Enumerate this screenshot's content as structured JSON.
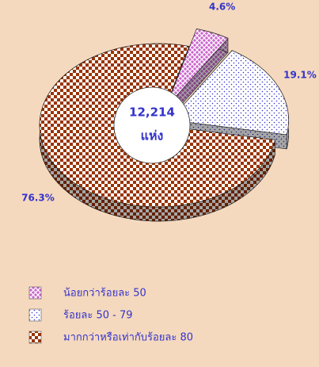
{
  "chart_data": {
    "type": "pie",
    "categories": [
      "น้อยกว่าร้อยละ 50",
      "ร้อยละ 50 - 79",
      "มากกว่าหรือเท่ากับร้อยละ 80"
    ],
    "values": [
      4.6,
      19.1,
      76.3
    ],
    "value_labels": [
      "4.6%",
      "19.1%",
      "76.3%"
    ],
    "colors": [
      "#cc66cc",
      "#3333cc",
      "#993300"
    ],
    "center_text": [
      "12,214",
      "แห่ง"
    ]
  }
}
